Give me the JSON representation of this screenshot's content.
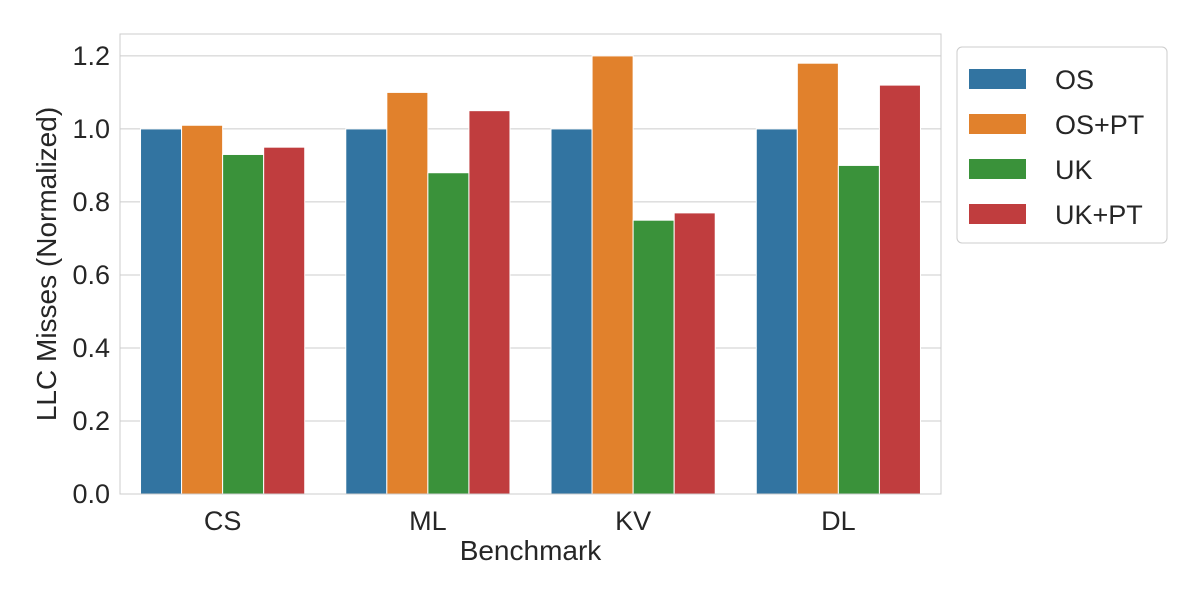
{
  "chart_data": {
    "type": "bar",
    "title": "",
    "xlabel": "Benchmark",
    "ylabel": "LLC Misses (Normalized)",
    "categories": [
      "CS",
      "ML",
      "KV",
      "DL"
    ],
    "series": [
      {
        "name": "OS",
        "color": "#3274a1",
        "values": [
          1.0,
          1.0,
          1.0,
          1.0
        ]
      },
      {
        "name": "OS+PT",
        "color": "#e1812c",
        "values": [
          1.01,
          1.1,
          1.2,
          1.18
        ]
      },
      {
        "name": "UK",
        "color": "#3a923a",
        "values": [
          0.93,
          0.88,
          0.75,
          0.9
        ]
      },
      {
        "name": "UK+PT",
        "color": "#c03d3e",
        "values": [
          0.95,
          1.05,
          0.77,
          1.12
        ]
      }
    ],
    "ylim": [
      0,
      1.26
    ],
    "yticks": [
      "0.0",
      "0.2",
      "0.4",
      "0.6",
      "0.8",
      "1.0",
      "1.2"
    ],
    "grid": true,
    "legend_position": "outside-top-right"
  }
}
